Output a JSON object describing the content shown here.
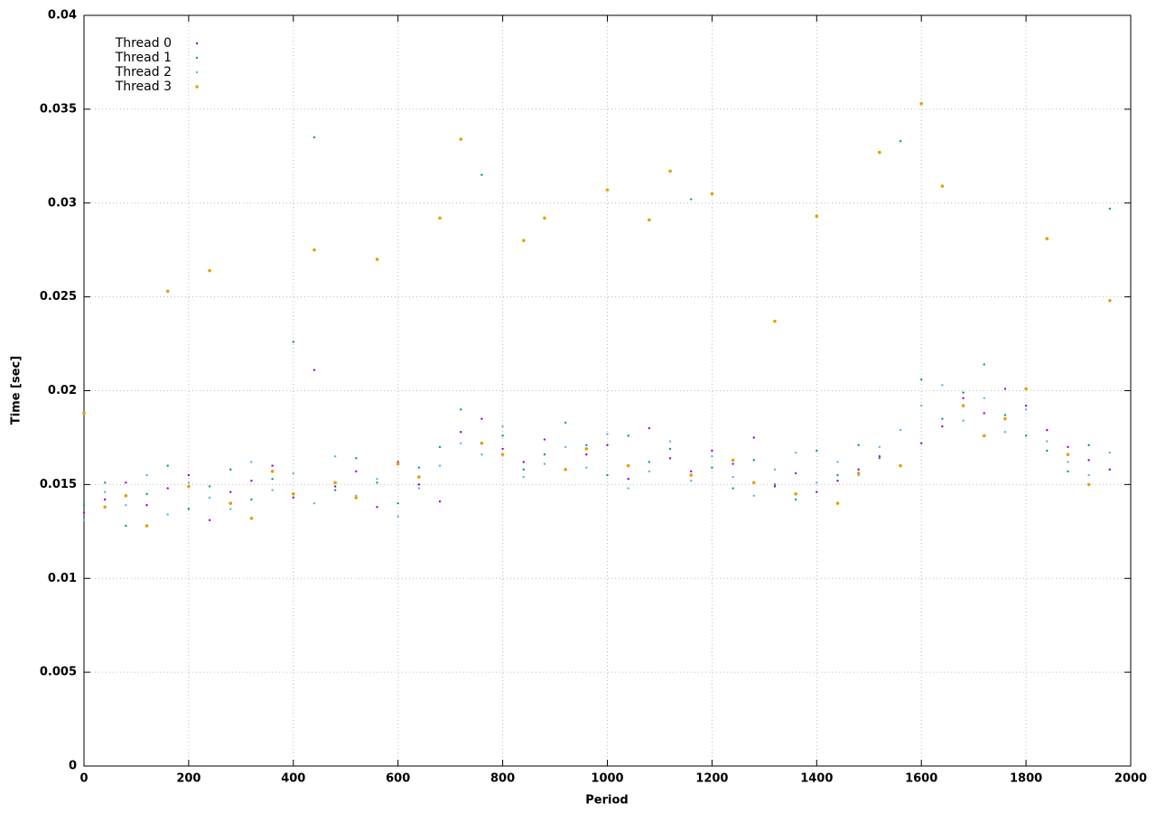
{
  "chart_data": {
    "type": "scatter",
    "x_label": "Period",
    "y_label": "Time [sec]",
    "x": [
      0,
      40,
      80,
      120,
      160,
      200,
      240,
      280,
      320,
      360,
      400,
      440,
      480,
      520,
      560,
      600,
      640,
      680,
      720,
      760,
      800,
      840,
      880,
      920,
      960,
      1000,
      1040,
      1080,
      1120,
      1160,
      1200,
      1240,
      1280,
      1320,
      1360,
      1400,
      1440,
      1480,
      1520,
      1560,
      1600,
      1640,
      1680,
      1720,
      1760,
      1800,
      1840,
      1880,
      1920,
      1960
    ],
    "series": [
      {
        "name": "Thread 0",
        "color": "#9400d3",
        "values": [
          0.0135,
          0.0142,
          0.0151,
          0.0139,
          0.0148,
          0.0155,
          0.0131,
          0.0146,
          0.0152,
          0.016,
          0.0143,
          0.0211,
          0.0149,
          0.0157,
          0.0138,
          0.0162,
          0.015,
          0.0141,
          0.0178,
          0.0185,
          0.0169,
          0.0162,
          0.0174,
          0.0158,
          0.0166,
          0.0171,
          0.0153,
          0.018,
          0.0164,
          0.0157,
          0.0168,
          0.0161,
          0.0175,
          0.0149,
          0.0156,
          0.0146,
          0.0152,
          0.0158,
          0.0165,
          0.016,
          0.0172,
          0.0181,
          0.0196,
          0.0188,
          0.0201,
          0.0192,
          0.0179,
          0.017,
          0.0163,
          0.0158
        ]
      },
      {
        "name": "Thread 1",
        "color": "#009e73",
        "values": [
          0.0139,
          0.0151,
          0.0128,
          0.0145,
          0.016,
          0.0137,
          0.0149,
          0.0158,
          0.0142,
          0.0153,
          0.0226,
          0.0335,
          0.0147,
          0.0164,
          0.0151,
          0.014,
          0.0159,
          0.017,
          0.019,
          0.0315,
          0.0176,
          0.0158,
          0.0166,
          0.0183,
          0.0171,
          0.0155,
          0.0176,
          0.0162,
          0.0169,
          0.0302,
          0.0159,
          0.0148,
          0.0163,
          0.015,
          0.0142,
          0.0168,
          0.0155,
          0.0171,
          0.0164,
          0.0333,
          0.0206,
          0.0185,
          0.0199,
          0.0214,
          0.0187,
          0.0176,
          0.0168,
          0.0157,
          0.0171,
          0.0297
        ]
      },
      {
        "name": "Thread 2",
        "color": "#56b4e9",
        "values": [
          0.0131,
          0.0146,
          0.0139,
          0.0155,
          0.0134,
          0.0151,
          0.0143,
          0.0137,
          0.0162,
          0.0147,
          0.0156,
          0.014,
          0.0165,
          0.0144,
          0.0153,
          0.0133,
          0.0148,
          0.016,
          0.0172,
          0.0166,
          0.0181,
          0.0154,
          0.0161,
          0.017,
          0.0159,
          0.0177,
          0.0148,
          0.0157,
          0.0173,
          0.0152,
          0.0165,
          0.0154,
          0.0144,
          0.0158,
          0.0167,
          0.0151,
          0.0162,
          0.0155,
          0.017,
          0.0179,
          0.0192,
          0.0203,
          0.0184,
          0.0196,
          0.0178,
          0.019,
          0.0173,
          0.0162,
          0.0155,
          0.0167
        ]
      },
      {
        "name": "Thread 3",
        "color": "#e69f00",
        "values": [
          0.0188,
          0.0138,
          0.0144,
          0.0128,
          0.0253,
          0.0149,
          0.0264,
          0.014,
          0.0132,
          0.0157,
          0.0145,
          0.0275,
          0.0151,
          0.0143,
          0.027,
          0.0161,
          0.0154,
          0.0292,
          0.0334,
          0.0172,
          0.0166,
          0.028,
          0.0292,
          0.0158,
          0.0169,
          0.0307,
          0.016,
          0.0291,
          0.0317,
          0.0155,
          0.0305,
          0.0163,
          0.0151,
          0.0237,
          0.0145,
          0.0293,
          0.014,
          0.0156,
          0.0327,
          0.016,
          0.0353,
          0.0309,
          0.0192,
          0.0176,
          0.0185,
          0.0201,
          0.0281,
          0.0166,
          0.015,
          0.0248
        ]
      }
    ],
    "xlim": [
      0,
      2000
    ],
    "xticks": [
      0,
      200,
      400,
      600,
      800,
      1000,
      1200,
      1400,
      1600,
      1800,
      2000
    ],
    "ylim": [
      0,
      0.04
    ],
    "yticks": [
      0,
      0.005,
      0.01,
      0.015,
      0.02,
      0.025,
      0.03,
      0.035,
      0.04
    ],
    "grid": true,
    "legend": "top-left"
  }
}
